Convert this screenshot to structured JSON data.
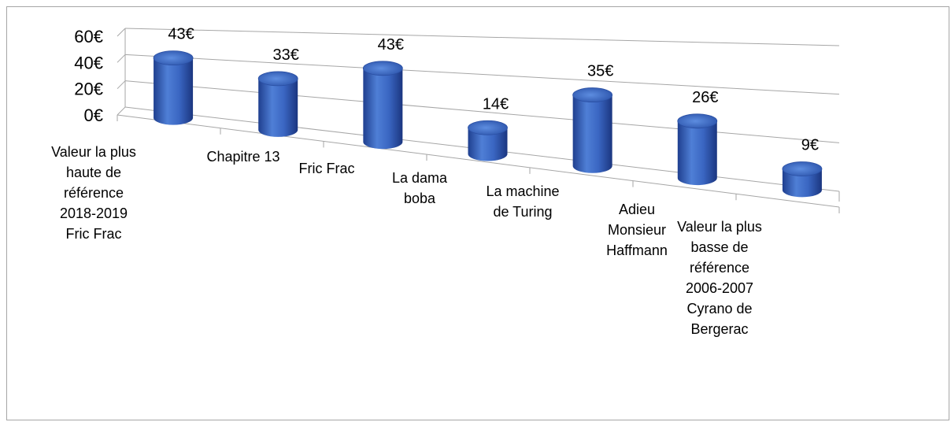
{
  "chart_data": {
    "type": "bar",
    "style": "3d-cylinder",
    "title": "",
    "xlabel": "",
    "ylabel": "",
    "ylim": [
      0,
      60
    ],
    "y_ticks": [
      "0€",
      "20€",
      "40€",
      "60€"
    ],
    "grid": true,
    "legend": "none",
    "bar_color": "#4472c4",
    "categories": [
      "Valeur la plus haute de référence 2018-2019 Fric Frac",
      "Chapitre 13",
      "Fric Frac",
      "La dama boba",
      "La machine de Turing",
      "Adieu Monsieur Haffmann",
      "Valeur la plus basse de référence 2006-2007 Cyrano de Bergerac"
    ],
    "category_lines": [
      [
        "Valeur la plus",
        "haute de",
        "référence",
        "2018-2019",
        "Fric Frac"
      ],
      [
        "Chapitre 13"
      ],
      [
        "Fric Frac"
      ],
      [
        "La dama",
        "boba"
      ],
      [
        "La machine",
        "de Turing"
      ],
      [
        "Adieu",
        "Monsieur",
        "Haffmann"
      ],
      [
        "Valeur la plus",
        "basse de",
        "référence",
        "2006-2007",
        "Cyrano de",
        "Bergerac"
      ]
    ],
    "values": [
      43,
      33,
      43,
      14,
      35,
      26,
      9
    ],
    "data_labels": [
      "43€",
      "33€",
      "43€",
      "14€",
      "35€",
      "26€",
      "9€"
    ]
  }
}
